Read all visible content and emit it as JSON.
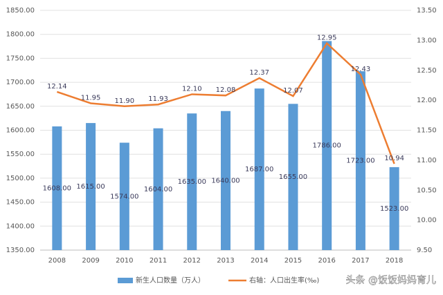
{
  "chart_data": {
    "type": "bar",
    "categories": [
      "2008",
      "2009",
      "2010",
      "2011",
      "2012",
      "2013",
      "2014",
      "2015",
      "2016",
      "2017",
      "2018"
    ],
    "series": [
      {
        "name": "新生人口数量（万人）",
        "type": "bar",
        "color": "#5b9bd5",
        "values": [
          1608,
          1615,
          1574,
          1604,
          1635,
          1640,
          1687,
          1655,
          1786,
          1723,
          1523
        ],
        "value_labels": [
          "1608.00",
          "1615.00",
          "1574.00",
          "1604.00",
          "1635.00",
          "1640.00",
          "1687.00",
          "1655.00",
          "1786.00",
          "1723.00",
          "1523.00"
        ]
      },
      {
        "name": "右轴：人口出生率(‰)",
        "type": "line",
        "axis": "y2",
        "color": "#ed7d31",
        "values": [
          12.14,
          11.95,
          11.9,
          11.93,
          12.1,
          12.08,
          12.37,
          12.07,
          12.95,
          12.43,
          10.94
        ],
        "value_labels": [
          "12.14",
          "11.95",
          "11.90",
          "11.93",
          "12.10",
          "12.08",
          "12.37",
          "12.07",
          "12.95",
          "12.43",
          "10.94"
        ]
      }
    ],
    "ylim": [
      1350,
      1850
    ],
    "yticks": [
      {
        "value": 1350,
        "label": "1350.00"
      },
      {
        "value": 1400,
        "label": "1400.00"
      },
      {
        "value": 1450,
        "label": "1450.00"
      },
      {
        "value": 1500,
        "label": "1500.00"
      },
      {
        "value": 1550,
        "label": "1550.00"
      },
      {
        "value": 1600,
        "label": "1600.00"
      },
      {
        "value": 1650,
        "label": "1650.00"
      },
      {
        "value": 1700,
        "label": "1700.00"
      },
      {
        "value": 1750,
        "label": "1750.00"
      },
      {
        "value": 1800,
        "label": "1800.00"
      },
      {
        "value": 1850,
        "label": "1850.00"
      }
    ],
    "y2lim": [
      9.5,
      13.5
    ],
    "y2ticks": [
      {
        "value": 9.5,
        "label": "9.50"
      },
      {
        "value": 10,
        "label": "10.00"
      },
      {
        "value": 10.5,
        "label": "10.50"
      },
      {
        "value": 11,
        "label": "11.00"
      },
      {
        "value": 11.5,
        "label": "11.50"
      },
      {
        "value": 12,
        "label": "12.00"
      },
      {
        "value": 12.5,
        "label": "12.50"
      },
      {
        "value": 13,
        "label": "13.00"
      },
      {
        "value": 13.5,
        "label": "13.50"
      }
    ],
    "grid": true,
    "watermark": "头条 @饭饭妈妈育儿"
  }
}
